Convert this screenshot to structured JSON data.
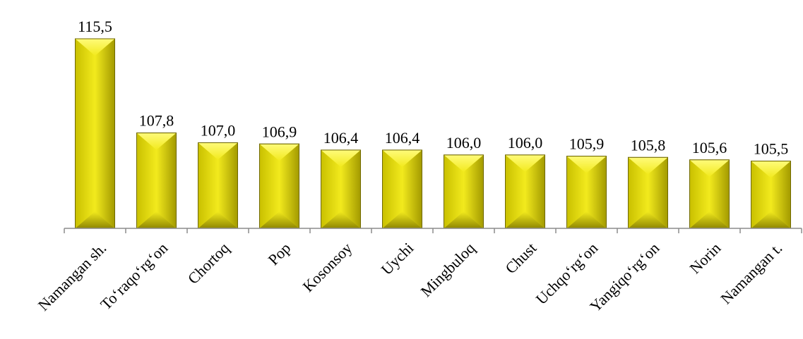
{
  "chart_data": {
    "type": "bar",
    "categories": [
      "Namangan sh.",
      "To‘raqo‘rg‘on",
      "Chortoq",
      "Pop",
      "Kosonsoy",
      "Uychi",
      "Mingbuloq",
      "Chust",
      "Uchqo‘rg‘on",
      "Yangiqo‘rg‘on",
      "Norin",
      "Namangan t."
    ],
    "values": [
      115.5,
      107.8,
      107.0,
      106.9,
      106.4,
      106.4,
      106.0,
      106.0,
      105.9,
      105.8,
      105.6,
      105.5
    ],
    "value_labels": [
      "115,5",
      "107,8",
      "107,0",
      "106,9",
      "106,4",
      "106,4",
      "106,0",
      "106,0",
      "105,9",
      "105,8",
      "105,6",
      "105,5"
    ],
    "title": "",
    "xlabel": "",
    "ylabel": "",
    "ylim": [
      100,
      115.5
    ],
    "grid": false,
    "legend": "none",
    "colors": {
      "bar_face": "#f2ea1d",
      "bar_light": "#fffb7a",
      "bar_dark": "#a39a00",
      "bar_edge": "#6f6800",
      "axis": "#8c8c8c"
    }
  }
}
